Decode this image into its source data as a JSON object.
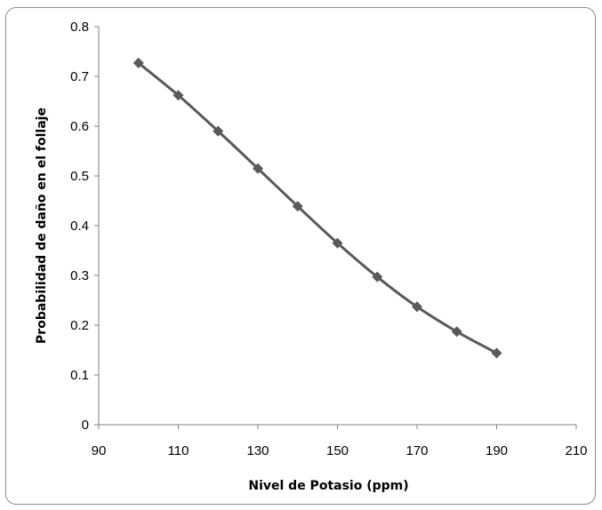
{
  "chart_data": {
    "type": "scatter",
    "title": "",
    "xlabel": "Nivel de Potasio (ppm)",
    "ylabel": "Probabilidad de daño en el follaje",
    "xlim": [
      90,
      210
    ],
    "ylim": [
      0,
      0.8
    ],
    "x_ticks": [
      "90",
      "110",
      "130",
      "150",
      "170",
      "190",
      "210"
    ],
    "y_ticks": [
      "0",
      "0.1",
      "0.2",
      "0.3",
      "0.4",
      "0.5",
      "0.6",
      "0.7",
      "0.8"
    ],
    "grid": false,
    "legend": "none",
    "line_style": "smoothed line with diamond markers",
    "series": [
      {
        "color": "#595959",
        "marker": "diamond",
        "x": [
          100,
          110,
          120,
          130,
          140,
          150,
          160,
          170,
          180,
          190
        ],
        "y": [
          0.727,
          0.662,
          0.59,
          0.515,
          0.439,
          0.365,
          0.297,
          0.237,
          0.187,
          0.144
        ]
      }
    ]
  }
}
